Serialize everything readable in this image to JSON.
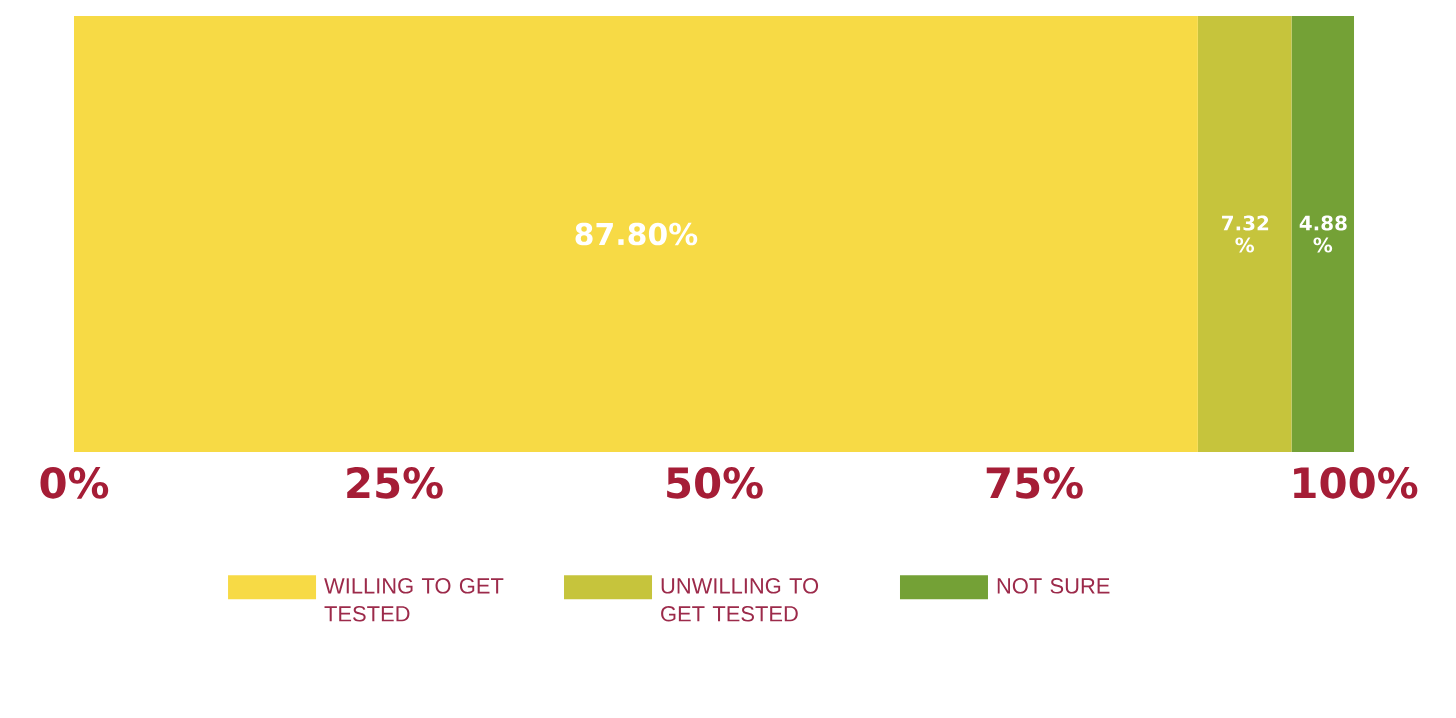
{
  "chart_data": {
    "type": "bar",
    "orientation": "horizontal",
    "stacked": true,
    "categories": [
      null
    ],
    "series": [
      {
        "name": "WILLING TO GET TESTED",
        "color": "#f7da45",
        "values": [
          87.8
        ],
        "value_labels": [
          "87.80%"
        ]
      },
      {
        "name": "UNWILLING TO GET TESTED",
        "color": "#c6c43c",
        "values": [
          7.32
        ],
        "value_labels": [
          "7.32 %"
        ]
      },
      {
        "name": "NOT SURE",
        "color": "#74a136",
        "values": [
          4.88
        ],
        "value_labels": [
          "4.88 %"
        ]
      }
    ],
    "xlim": [
      0,
      100
    ],
    "xticks": [
      {
        "value": 0,
        "label": "0%"
      },
      {
        "value": 25,
        "label": "25%"
      },
      {
        "value": 50,
        "label": "50%"
      },
      {
        "value": 75,
        "label": "75%"
      },
      {
        "value": 100,
        "label": "100%"
      }
    ],
    "grid": false,
    "legend": "bottom"
  }
}
